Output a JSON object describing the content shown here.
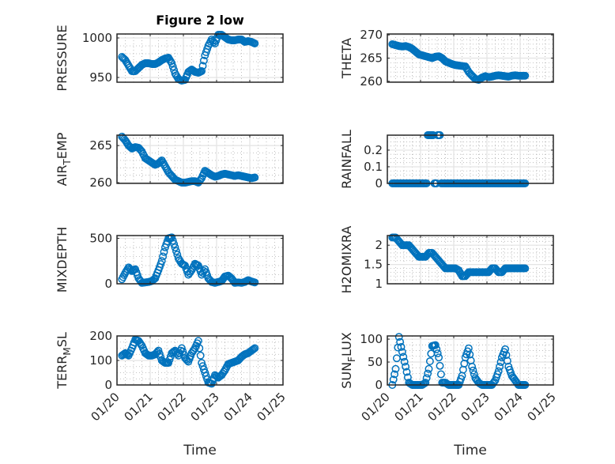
{
  "chart_data": {
    "type": "scatter",
    "title": "Figure 2 low",
    "xlabel": "Time",
    "x_tick_labels": [
      "01/20",
      "01/21",
      "01/22",
      "01/23",
      "01/24",
      "01/25"
    ],
    "xlim_days_from_0120": [
      0,
      5
    ],
    "x_days_from_0120": [
      0.15,
      0.25,
      0.35,
      0.45,
      0.55,
      0.65,
      0.75,
      0.85,
      0.95,
      1.05,
      1.15,
      1.25,
      1.35,
      1.45,
      1.55,
      1.65,
      1.75,
      1.85,
      1.95,
      2.05,
      2.15,
      2.25,
      2.35,
      2.45,
      2.55,
      2.65,
      2.75,
      2.85,
      2.95,
      3.05,
      3.15,
      3.25,
      3.35,
      3.45,
      3.55,
      3.65,
      3.75,
      3.85,
      3.95,
      4.05,
      4.15
    ],
    "marker_color": "#0072BD",
    "grid": "major and minor",
    "subplots": [
      {
        "ylabel": "PRESSURE",
        "column": "left",
        "row": 1,
        "ylim": [
          944,
          1005
        ],
        "yticks": [
          950,
          1000
        ],
        "yminor": [
          960,
          970,
          980,
          990
        ],
        "values": [
          976,
          972,
          965,
          958,
          958,
          962,
          966,
          968,
          968,
          967,
          967,
          969,
          972,
          974,
          975,
          968,
          955,
          948,
          946,
          947,
          957,
          960,
          957,
          956,
          958,
          978,
          990,
          998,
          993,
          1004,
          1004,
          1001,
          998,
          997,
          997,
          998,
          998,
          995,
          996,
          995,
          993
        ]
      },
      {
        "ylabel": "THETA",
        "column": "right",
        "row": 1,
        "ylim": [
          259.8,
          270.2
        ],
        "yticks": [
          260,
          265,
          270
        ],
        "yminor": [
          261,
          262,
          263,
          264,
          266,
          267,
          268,
          269
        ],
        "values": [
          268,
          267.8,
          267.6,
          267.5,
          267.6,
          267.4,
          267.0,
          266.4,
          265.8,
          265.6,
          265.4,
          265.2,
          265.0,
          265.3,
          265.4,
          265.0,
          264.3,
          264.0,
          263.7,
          263.5,
          263.4,
          263.3,
          263.2,
          262.0,
          261.2,
          260.5,
          260.3,
          260.8,
          261.1,
          260.9,
          261.0,
          261.2,
          261.3,
          261.2,
          261.1,
          261.0,
          261.2,
          261.3,
          261.2,
          261.2,
          261.2
        ]
      },
      {
        "ylabel": "AIR_TEMP",
        "column": "left",
        "row": 2,
        "ylim": [
          259.9,
          266.4
        ],
        "yticks": [
          260,
          265
        ],
        "yminor": [
          261,
          262,
          263,
          264,
          266
        ],
        "values": [
          266.2,
          265.7,
          265.0,
          264.6,
          264.8,
          264.7,
          264.2,
          263.3,
          263.0,
          262.7,
          262.4,
          262.6,
          263.0,
          262.2,
          261.4,
          260.9,
          260.4,
          260.2,
          260.0,
          260.0,
          260.1,
          260.2,
          260.2,
          260.0,
          260.6,
          261.6,
          261.3,
          261.0,
          260.8,
          260.9,
          261.1,
          261.2,
          261.1,
          261.0,
          260.9,
          261.0,
          260.9,
          260.8,
          260.7,
          260.6,
          260.7
        ]
      },
      {
        "ylabel": "RAINFALL",
        "column": "right",
        "row": 2,
        "ylim": [
          0,
          0.29
        ],
        "yticks": [
          0,
          0.1,
          0.2
        ],
        "yminor": [
          0.025,
          0.05,
          0.075,
          0.125,
          0.15,
          0.175,
          0.225,
          0.25,
          0.275
        ],
        "values": [
          0,
          0,
          0,
          0,
          0,
          0,
          0,
          0,
          0,
          0,
          0,
          0.29,
          0.29,
          0,
          0.29,
          0,
          0,
          0,
          0,
          0,
          0,
          0,
          0,
          0,
          0,
          0,
          0,
          0,
          0,
          0,
          0,
          0,
          0,
          0,
          0,
          0,
          0,
          0,
          0,
          0,
          0
        ]
      },
      {
        "ylabel": "MIXDEPTH",
        "column": "left",
        "row": 3,
        "ylim": [
          0,
          530
        ],
        "yticks": [
          0,
          500
        ],
        "yminor": [
          100,
          200,
          300,
          400
        ],
        "values": [
          50,
          120,
          180,
          140,
          160,
          60,
          10,
          15,
          20,
          30,
          60,
          150,
          250,
          400,
          500,
          510,
          400,
          280,
          220,
          200,
          100,
          150,
          220,
          200,
          100,
          160,
          60,
          20,
          10,
          20,
          30,
          80,
          90,
          60,
          10,
          15,
          10,
          20,
          40,
          25,
          15
        ]
      },
      {
        "ylabel": "H2OMIXRA",
        "column": "right",
        "row": 3,
        "ylim": [
          1,
          2.25
        ],
        "yticks": [
          1,
          1.5,
          2
        ],
        "yminor": [
          1.1,
          1.2,
          1.3,
          1.4,
          1.6,
          1.7,
          1.8,
          1.9,
          2.1,
          2.2
        ],
        "values": [
          2.2,
          2.2,
          2.1,
          2.0,
          2.0,
          2.0,
          1.9,
          1.8,
          1.7,
          1.7,
          1.7,
          1.8,
          1.8,
          1.7,
          1.6,
          1.5,
          1.4,
          1.4,
          1.4,
          1.4,
          1.35,
          1.2,
          1.2,
          1.3,
          1.3,
          1.3,
          1.3,
          1.3,
          1.3,
          1.3,
          1.4,
          1.4,
          1.3,
          1.3,
          1.4,
          1.4,
          1.4,
          1.4,
          1.4,
          1.4,
          1.4
        ]
      },
      {
        "ylabel": "TERR_MSL",
        "column": "left",
        "row": 4,
        "ylim": [
          0,
          200
        ],
        "yticks": [
          0,
          100,
          200
        ],
        "yminor": [
          25,
          50,
          75,
          125,
          150,
          175
        ],
        "values": [
          120,
          130,
          120,
          150,
          185,
          180,
          160,
          130,
          120,
          120,
          125,
          140,
          100,
          90,
          90,
          130,
          140,
          120,
          150,
          110,
          95,
          130,
          150,
          180,
          90,
          50,
          10,
          5,
          40,
          30,
          40,
          60,
          85,
          90,
          95,
          100,
          115,
          125,
          130,
          140,
          150
        ]
      },
      {
        "ylabel": "SUN_FLUX",
        "column": "right",
        "row": 4,
        "ylim": [
          0,
          107
        ],
        "yticks": [
          0,
          50,
          100
        ],
        "yminor": [
          12.5,
          25,
          37.5,
          62.5,
          75,
          87.5
        ],
        "values": [
          0,
          35,
          105,
          72,
          40,
          5,
          0,
          0,
          0,
          0,
          5,
          35,
          85,
          87,
          60,
          5,
          5,
          0,
          0,
          0,
          0,
          20,
          60,
          80,
          40,
          15,
          5,
          0,
          0,
          0,
          0,
          10,
          30,
          60,
          78,
          40,
          20,
          10,
          0,
          0,
          0
        ]
      }
    ]
  }
}
